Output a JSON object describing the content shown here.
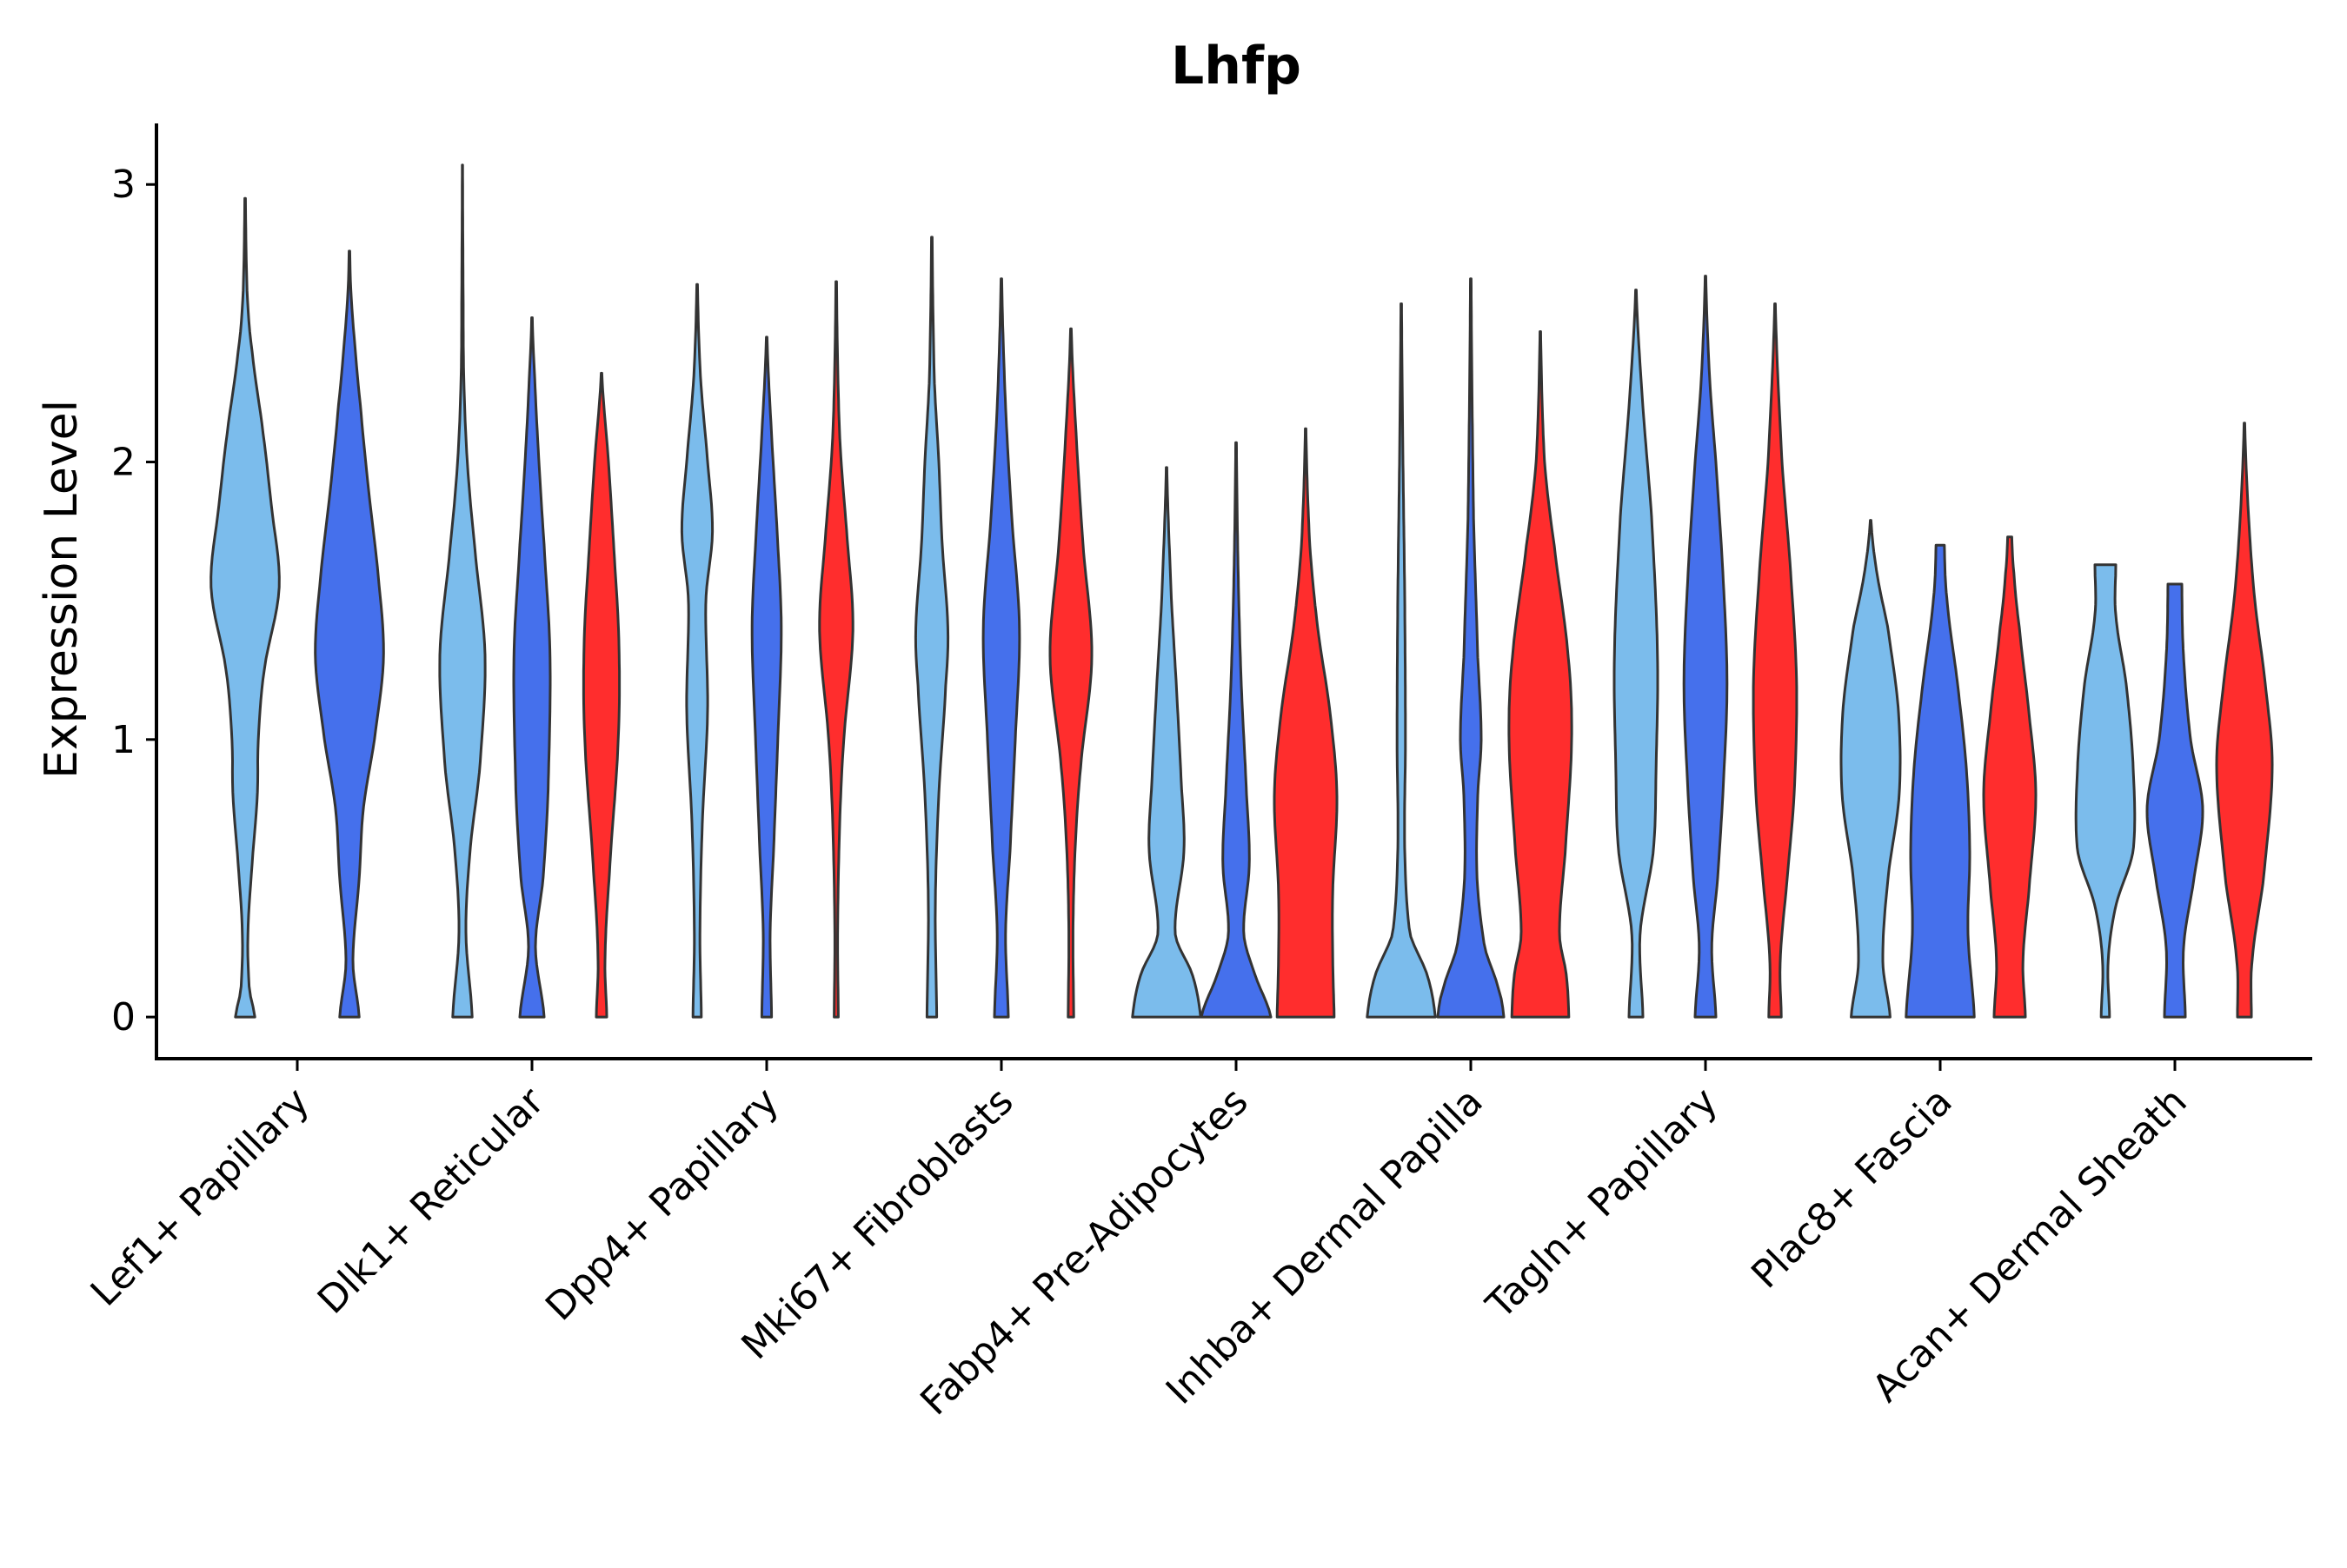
{
  "chart_data": {
    "type": "violin",
    "title": "Lhfp",
    "xlabel": "",
    "ylabel": "Expression Level",
    "ylim": [
      -0.15,
      3.22
    ],
    "yticks": [
      0,
      1,
      2,
      3
    ],
    "grid": false,
    "legend": "none",
    "series_colors": [
      "#7bbcec",
      "#4570ec",
      "#ff2d2d"
    ],
    "categories": [
      "Lef1+ Papillary",
      "Dlk1+ Reticular",
      "Dpp4+ Papillary",
      "Mki67+ Fibroblasts",
      "Fabp4+ Pre-Adipocytes",
      "Inhba+ Dermal Papilla",
      "Tagln+ Papillary",
      "Plac8+ Fascia",
      "Acan+ Dermal Sheath"
    ],
    "violins": [
      {
        "category": "Lef1+ Papillary",
        "series": 0,
        "max": 2.95,
        "shape": [
          [
            0,
            0.28
          ],
          [
            0.1,
            0.12
          ],
          [
            0.3,
            0.08
          ],
          [
            0.55,
            0.2
          ],
          [
            0.8,
            0.35
          ],
          [
            1.0,
            0.38
          ],
          [
            1.25,
            0.55
          ],
          [
            1.55,
            0.98
          ],
          [
            1.85,
            0.75
          ],
          [
            2.1,
            0.52
          ],
          [
            2.4,
            0.2
          ],
          [
            2.6,
            0.06
          ],
          [
            2.95,
            0.01
          ]
        ]
      },
      {
        "category": "Lef1+ Papillary",
        "series": 1,
        "max": 2.76,
        "shape": [
          [
            0,
            0.28
          ],
          [
            0.2,
            0.1
          ],
          [
            0.5,
            0.28
          ],
          [
            0.75,
            0.4
          ],
          [
            1.0,
            0.72
          ],
          [
            1.3,
            0.98
          ],
          [
            1.6,
            0.82
          ],
          [
            1.9,
            0.55
          ],
          [
            2.2,
            0.32
          ],
          [
            2.4,
            0.17
          ],
          [
            2.6,
            0.05
          ],
          [
            2.76,
            0.01
          ]
        ]
      },
      {
        "category": "Dlk1+ Reticular",
        "series": 0,
        "max": 3.07,
        "shape": [
          [
            0,
            0.28
          ],
          [
            0.3,
            0.1
          ],
          [
            0.6,
            0.22
          ],
          [
            0.9,
            0.5
          ],
          [
            1.3,
            0.65
          ],
          [
            1.7,
            0.35
          ],
          [
            2.0,
            0.14
          ],
          [
            2.3,
            0.04
          ],
          [
            2.6,
            0.02
          ],
          [
            3.07,
            0.005
          ]
        ]
      },
      {
        "category": "Dlk1+ Reticular",
        "series": 1,
        "max": 2.52,
        "shape": [
          [
            0,
            0.35
          ],
          [
            0.25,
            0.1
          ],
          [
            0.5,
            0.32
          ],
          [
            0.8,
            0.46
          ],
          [
            1.3,
            0.52
          ],
          [
            1.7,
            0.35
          ],
          [
            2.0,
            0.2
          ],
          [
            2.3,
            0.08
          ],
          [
            2.52,
            0.01
          ]
        ]
      },
      {
        "category": "Dlk1+ Reticular",
        "series": 2,
        "max": 2.32,
        "shape": [
          [
            0,
            0.15
          ],
          [
            0.2,
            0.1
          ],
          [
            0.5,
            0.22
          ],
          [
            1.0,
            0.48
          ],
          [
            1.35,
            0.5
          ],
          [
            1.7,
            0.35
          ],
          [
            2.0,
            0.2
          ],
          [
            2.32,
            0.01
          ]
        ]
      },
      {
        "category": "Dpp4+ Papillary",
        "series": 0,
        "max": 2.64,
        "shape": [
          [
            0,
            0.12
          ],
          [
            0.3,
            0.08
          ],
          [
            0.7,
            0.15
          ],
          [
            1.1,
            0.3
          ],
          [
            1.5,
            0.25
          ],
          [
            1.75,
            0.44
          ],
          [
            2.0,
            0.3
          ],
          [
            2.3,
            0.1
          ],
          [
            2.64,
            0.01
          ]
        ]
      },
      {
        "category": "Dpp4+ Papillary",
        "series": 1,
        "max": 2.45,
        "shape": [
          [
            0,
            0.14
          ],
          [
            0.3,
            0.1
          ],
          [
            0.6,
            0.2
          ],
          [
            1.0,
            0.32
          ],
          [
            1.4,
            0.42
          ],
          [
            1.75,
            0.3
          ],
          [
            2.1,
            0.14
          ],
          [
            2.45,
            0.01
          ]
        ]
      },
      {
        "category": "Dpp4+ Papillary",
        "series": 2,
        "max": 2.65,
        "shape": [
          [
            0,
            0.06
          ],
          [
            0.3,
            0.04
          ],
          [
            0.7,
            0.1
          ],
          [
            1.0,
            0.22
          ],
          [
            1.4,
            0.48
          ],
          [
            1.75,
            0.3
          ],
          [
            2.05,
            0.12
          ],
          [
            2.3,
            0.05
          ],
          [
            2.65,
            0.01
          ]
        ]
      },
      {
        "category": "Mki67+ Fibroblasts",
        "series": 0,
        "max": 2.81,
        "shape": [
          [
            0,
            0.14
          ],
          [
            0.4,
            0.1
          ],
          [
            0.8,
            0.2
          ],
          [
            1.2,
            0.4
          ],
          [
            1.4,
            0.46
          ],
          [
            1.7,
            0.3
          ],
          [
            2.0,
            0.2
          ],
          [
            2.3,
            0.07
          ],
          [
            2.81,
            0.01
          ]
        ]
      },
      {
        "category": "Mki67+ Fibroblasts",
        "series": 1,
        "max": 2.66,
        "shape": [
          [
            0,
            0.2
          ],
          [
            0.3,
            0.12
          ],
          [
            0.6,
            0.25
          ],
          [
            1.0,
            0.4
          ],
          [
            1.4,
            0.52
          ],
          [
            1.8,
            0.3
          ],
          [
            2.2,
            0.12
          ],
          [
            2.66,
            0.01
          ]
        ]
      },
      {
        "category": "Mki67+ Fibroblasts",
        "series": 2,
        "max": 2.48,
        "shape": [
          [
            0,
            0.08
          ],
          [
            0.3,
            0.06
          ],
          [
            0.6,
            0.12
          ],
          [
            0.9,
            0.28
          ],
          [
            1.3,
            0.6
          ],
          [
            1.7,
            0.35
          ],
          [
            2.1,
            0.15
          ],
          [
            2.48,
            0.01
          ]
        ]
      },
      {
        "category": "Fabp4+ Pre-Adipocytes",
        "series": 0,
        "max": 1.98,
        "shape": [
          [
            0,
            0.98
          ],
          [
            0.15,
            0.75
          ],
          [
            0.3,
            0.25
          ],
          [
            0.6,
            0.5
          ],
          [
            0.85,
            0.42
          ],
          [
            1.2,
            0.28
          ],
          [
            1.5,
            0.14
          ],
          [
            1.98,
            0.01
          ]
        ]
      },
      {
        "category": "Fabp4+ Pre-Adipocytes",
        "series": 1,
        "max": 2.07,
        "shape": [
          [
            0,
            1.0
          ],
          [
            0.15,
            0.55
          ],
          [
            0.3,
            0.22
          ],
          [
            0.55,
            0.38
          ],
          [
            0.8,
            0.3
          ],
          [
            1.2,
            0.15
          ],
          [
            1.6,
            0.06
          ],
          [
            2.07,
            0.01
          ]
        ]
      },
      {
        "category": "Fabp4+ Pre-Adipocytes",
        "series": 2,
        "max": 2.12,
        "shape": [
          [
            0,
            0.82
          ],
          [
            0.2,
            0.78
          ],
          [
            0.45,
            0.78
          ],
          [
            0.8,
            0.9
          ],
          [
            1.1,
            0.7
          ],
          [
            1.4,
            0.35
          ],
          [
            1.7,
            0.12
          ],
          [
            2.12,
            0.01
          ]
        ]
      },
      {
        "category": "Inhba+ Dermal Papilla",
        "series": 0,
        "max": 2.57,
        "shape": [
          [
            0,
            0.98
          ],
          [
            0.15,
            0.75
          ],
          [
            0.3,
            0.25
          ],
          [
            0.6,
            0.1
          ],
          [
            1.0,
            0.12
          ],
          [
            1.5,
            0.1
          ],
          [
            2.0,
            0.05
          ],
          [
            2.57,
            0.01
          ]
        ]
      },
      {
        "category": "Inhba+ Dermal Papilla",
        "series": 1,
        "max": 2.66,
        "shape": [
          [
            0,
            0.95
          ],
          [
            0.1,
            0.8
          ],
          [
            0.25,
            0.4
          ],
          [
            0.5,
            0.18
          ],
          [
            0.8,
            0.2
          ],
          [
            1.0,
            0.3
          ],
          [
            1.3,
            0.2
          ],
          [
            1.8,
            0.08
          ],
          [
            2.66,
            0.01
          ]
        ]
      },
      {
        "category": "Inhba+ Dermal Papilla",
        "series": 2,
        "max": 2.47,
        "shape": [
          [
            0,
            0.82
          ],
          [
            0.15,
            0.75
          ],
          [
            0.3,
            0.55
          ],
          [
            0.6,
            0.72
          ],
          [
            1.0,
            0.9
          ],
          [
            1.3,
            0.8
          ],
          [
            1.7,
            0.4
          ],
          [
            2.0,
            0.12
          ],
          [
            2.47,
            0.01
          ]
        ]
      },
      {
        "category": "Tagln+ Papillary",
        "series": 0,
        "max": 2.62,
        "shape": [
          [
            0,
            0.2
          ],
          [
            0.3,
            0.12
          ],
          [
            0.6,
            0.5
          ],
          [
            0.9,
            0.58
          ],
          [
            1.3,
            0.62
          ],
          [
            1.8,
            0.45
          ],
          [
            2.2,
            0.2
          ],
          [
            2.62,
            0.01
          ]
        ]
      },
      {
        "category": "Tagln+ Papillary",
        "series": 1,
        "max": 2.67,
        "shape": [
          [
            0,
            0.3
          ],
          [
            0.25,
            0.18
          ],
          [
            0.5,
            0.35
          ],
          [
            0.8,
            0.5
          ],
          [
            1.2,
            0.62
          ],
          [
            1.6,
            0.5
          ],
          [
            2.0,
            0.3
          ],
          [
            2.3,
            0.12
          ],
          [
            2.67,
            0.01
          ]
        ]
      },
      {
        "category": "Tagln+ Papillary",
        "series": 2,
        "max": 2.57,
        "shape": [
          [
            0,
            0.18
          ],
          [
            0.2,
            0.15
          ],
          [
            0.5,
            0.35
          ],
          [
            0.8,
            0.55
          ],
          [
            1.2,
            0.62
          ],
          [
            1.6,
            0.45
          ],
          [
            2.0,
            0.2
          ],
          [
            2.57,
            0.01
          ]
        ]
      },
      {
        "category": "Plac8+ Fascia",
        "series": 0,
        "max": 1.79,
        "shape": [
          [
            0,
            0.56
          ],
          [
            0.2,
            0.35
          ],
          [
            0.5,
            0.5
          ],
          [
            0.8,
            0.82
          ],
          [
            1.1,
            0.8
          ],
          [
            1.4,
            0.5
          ],
          [
            1.6,
            0.18
          ],
          [
            1.79,
            0.01
          ]
        ]
      },
      {
        "category": "Plac8+ Fascia",
        "series": 1,
        "max": 1.7,
        "shape": [
          [
            0,
            0.98
          ],
          [
            0.3,
            0.8
          ],
          [
            0.6,
            0.85
          ],
          [
            0.9,
            0.75
          ],
          [
            1.2,
            0.5
          ],
          [
            1.5,
            0.2
          ],
          [
            1.7,
            0.12
          ]
        ]
      },
      {
        "category": "Plac8+ Fascia",
        "series": 2,
        "max": 1.73,
        "shape": [
          [
            0,
            0.45
          ],
          [
            0.2,
            0.38
          ],
          [
            0.45,
            0.55
          ],
          [
            0.8,
            0.75
          ],
          [
            1.1,
            0.55
          ],
          [
            1.4,
            0.28
          ],
          [
            1.6,
            0.12
          ],
          [
            1.73,
            0.06
          ]
        ]
      },
      {
        "category": "Acan+ Dermal Sheath",
        "series": 0,
        "max": 1.63,
        "shape": [
          [
            0,
            0.12
          ],
          [
            0.2,
            0.08
          ],
          [
            0.4,
            0.3
          ],
          [
            0.6,
            0.8
          ],
          [
            0.9,
            0.8
          ],
          [
            1.2,
            0.6
          ],
          [
            1.45,
            0.3
          ],
          [
            1.63,
            0.3
          ]
        ]
      },
      {
        "category": "Acan+ Dermal Sheath",
        "series": 1,
        "max": 1.56,
        "shape": [
          [
            0,
            0.3
          ],
          [
            0.25,
            0.25
          ],
          [
            0.5,
            0.55
          ],
          [
            0.75,
            0.8
          ],
          [
            1.0,
            0.45
          ],
          [
            1.3,
            0.25
          ],
          [
            1.56,
            0.2
          ]
        ]
      },
      {
        "category": "Acan+ Dermal Sheath",
        "series": 2,
        "max": 2.14,
        "shape": [
          [
            0,
            0.2
          ],
          [
            0.2,
            0.22
          ],
          [
            0.5,
            0.55
          ],
          [
            0.9,
            0.8
          ],
          [
            1.2,
            0.6
          ],
          [
            1.5,
            0.3
          ],
          [
            1.8,
            0.12
          ],
          [
            2.14,
            0.01
          ]
        ]
      }
    ]
  }
}
